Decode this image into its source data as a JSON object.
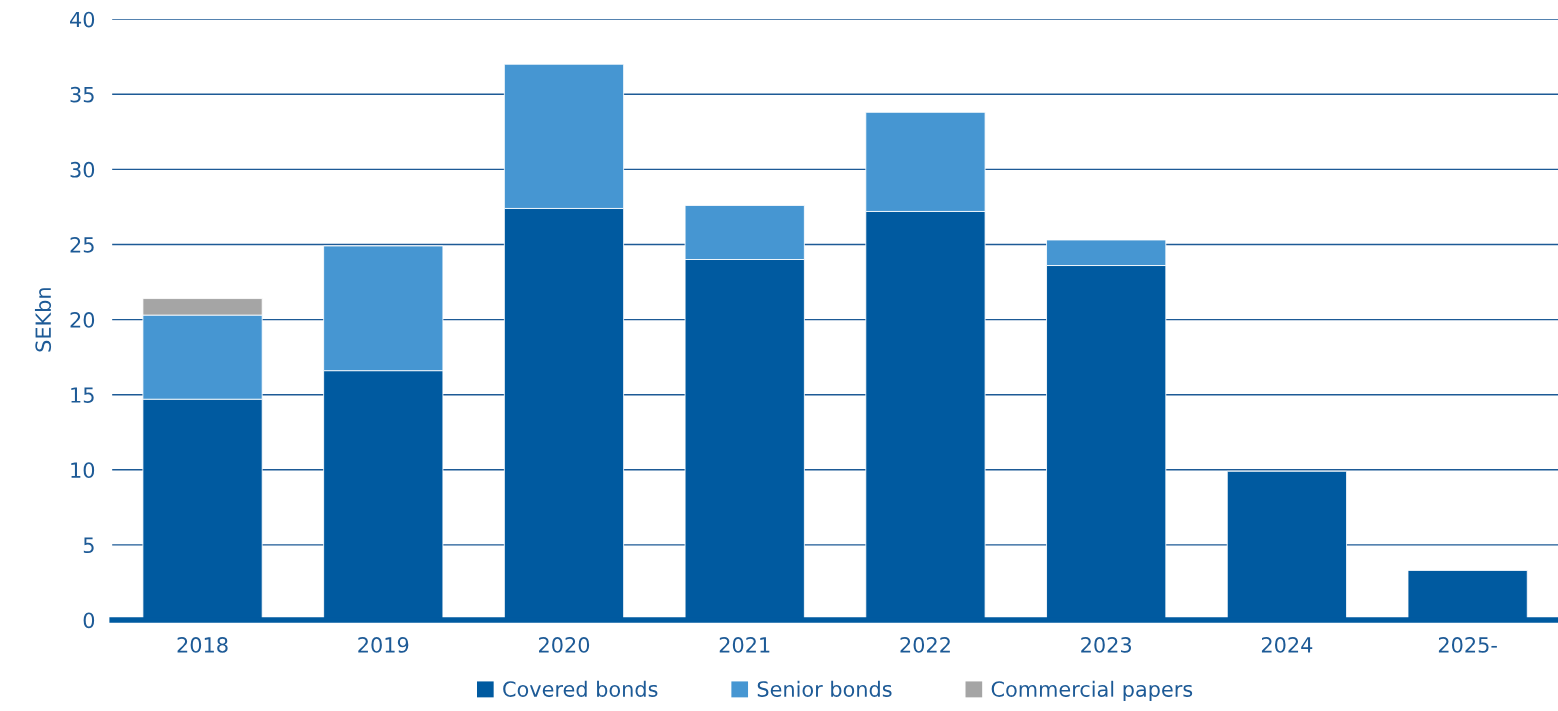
{
  "chart_data": {
    "type": "bar",
    "stacked": true,
    "ylabel": "SEKbn",
    "categories": [
      "2018",
      "2019",
      "2020",
      "2021",
      "2022",
      "2023",
      "2024",
      "2025-"
    ],
    "series": [
      {
        "name": "Covered bonds",
        "color": "#005aa0",
        "values": [
          14.7,
          16.6,
          27.4,
          24.0,
          27.2,
          23.6,
          9.9,
          3.3
        ]
      },
      {
        "name": "Senior bonds",
        "color": "#4696d2",
        "values": [
          5.6,
          8.3,
          9.6,
          3.6,
          6.6,
          1.7,
          null,
          null
        ]
      },
      {
        "name": "Commercial papers",
        "color": "#a5a5a5",
        "values": [
          1.1,
          null,
          null,
          null,
          null,
          null,
          null,
          null
        ]
      }
    ],
    "ylim": [
      0,
      40
    ],
    "yticks": [
      0,
      5,
      10,
      15,
      20,
      25,
      30,
      35,
      40
    ],
    "grid": "y",
    "legend": "bottom"
  }
}
